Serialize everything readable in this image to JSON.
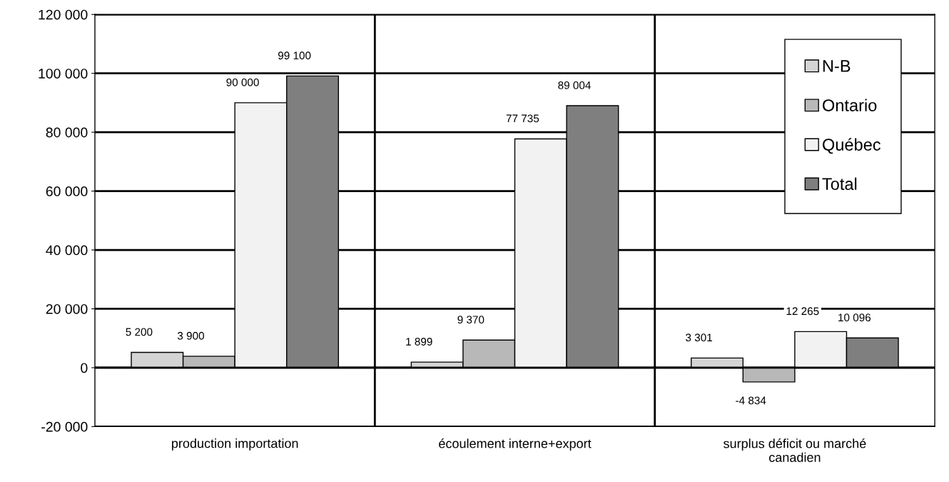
{
  "chart_data": {
    "type": "bar",
    "categories": [
      "production importation",
      "écoulement interne+export",
      "surplus déficit ou marché\ncanadien"
    ],
    "series": [
      {
        "name": "N-B",
        "color": "#d4d4d4",
        "values": [
          5200,
          1899,
          3301
        ],
        "value_labels": [
          "5 200",
          "1 899",
          "3 301"
        ]
      },
      {
        "name": "Ontario",
        "color": "#b8b8b8",
        "values": [
          3900,
          9370,
          -4834
        ],
        "value_labels": [
          "3 900",
          "9 370",
          "-4 834"
        ]
      },
      {
        "name": "Québec",
        "color": "#f2f2f2",
        "values": [
          90000,
          77735,
          12265
        ],
        "value_labels": [
          "90 000",
          "77 735",
          "12 265"
        ]
      },
      {
        "name": "Total",
        "color": "#7f7f7f",
        "values": [
          99100,
          89004,
          10096
        ],
        "value_labels": [
          "99 100",
          "89 004",
          "10 096"
        ]
      }
    ],
    "ylim": [
      -20000,
      120000
    ],
    "yticks": [
      {
        "value": -20000,
        "label": "-20 000"
      },
      {
        "value": 0,
        "label": "0"
      },
      {
        "value": 20000,
        "label": "20 000"
      },
      {
        "value": 40000,
        "label": "40 000"
      },
      {
        "value": 60000,
        "label": "60 000"
      },
      {
        "value": 80000,
        "label": "80 000"
      },
      {
        "value": 100000,
        "label": "100 000"
      },
      {
        "value": 120000,
        "label": "120 000"
      }
    ],
    "grid": true,
    "legend": "top right"
  }
}
